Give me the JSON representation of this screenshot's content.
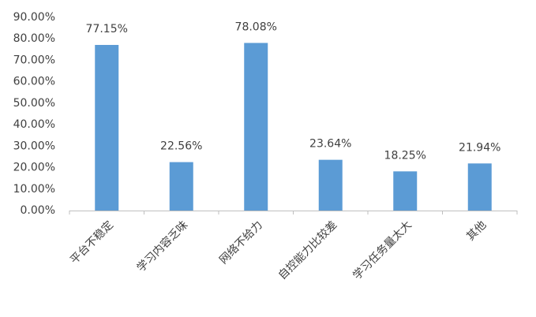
{
  "chart_data": {
    "type": "bar",
    "categories": [
      "平台不稳定",
      "学习内容乏味",
      "网络不给力",
      "自控能力比较差",
      "学习任务量太大",
      "其他"
    ],
    "values": [
      77.15,
      22.56,
      78.08,
      23.64,
      18.25,
      21.94
    ],
    "value_labels": [
      "77.15%",
      "22.56%",
      "78.08%",
      "23.64%",
      "18.25%",
      "21.94%"
    ],
    "color": "#5b9bd5",
    "ylim": [
      0,
      90
    ],
    "yticks": [
      {
        "value": 0,
        "label": "0.00%"
      },
      {
        "value": 10,
        "label": "10.00%"
      },
      {
        "value": 20,
        "label": "20.00%"
      },
      {
        "value": 30,
        "label": "30.00%"
      },
      {
        "value": 40,
        "label": "40.00%"
      },
      {
        "value": 50,
        "label": "50.00%"
      },
      {
        "value": 60,
        "label": "60.00%"
      },
      {
        "value": 70,
        "label": "70.00%"
      },
      {
        "value": 80,
        "label": "80.00%"
      },
      {
        "value": 90,
        "label": "90.00%"
      }
    ],
    "grid": false
  }
}
